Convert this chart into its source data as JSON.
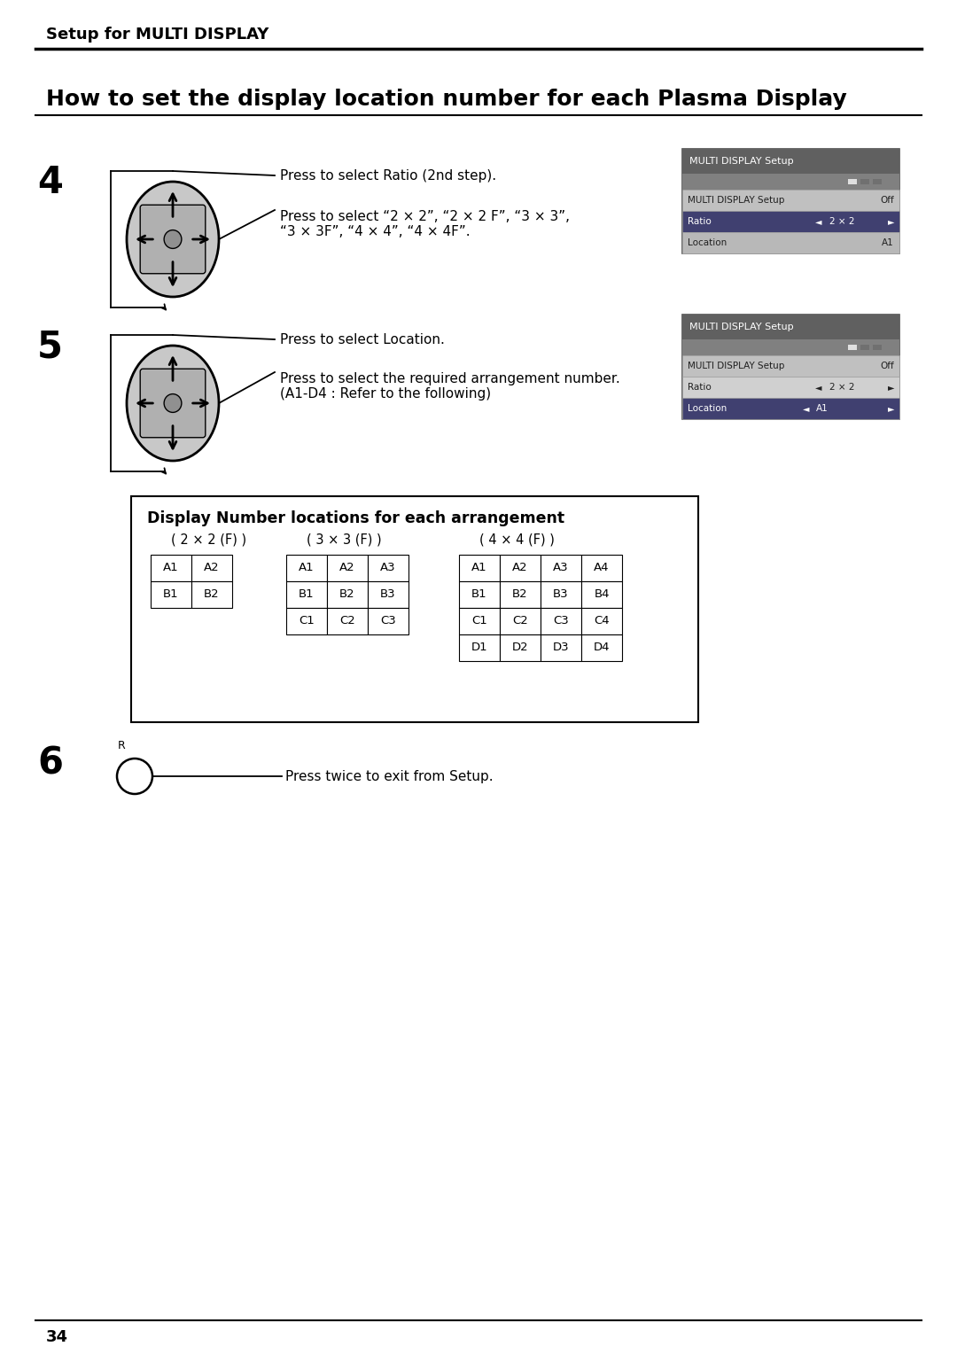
{
  "page_bg": "#ffffff",
  "header_text": "Setup for MULTI DISPLAY",
  "title_text": "How to set the display location number for each Plasma Display",
  "step4_number": "4",
  "step4_label1": "Press to select Ratio (2nd step).",
  "step4_label2": "Press to select “2 × 2”, “2 × 2 F”, “3 × 3”,\n“3 × 3F”, “4 × 4”, “4 × 4F”.",
  "step5_number": "5",
  "step5_label1": "Press to select Location.",
  "step5_label2": "Press to select the required arrangement number.\n(A1-D4 : Refer to the following)",
  "step6_number": "6",
  "step6_label": "Press twice to exit from Setup.",
  "step6_r": "R",
  "menu_title": "MULTI DISPLAY Setup",
  "menu_row1_label": "MULTI DISPLAY Setup",
  "menu_row1_value": "Off",
  "menu_row2_label": "Ratio",
  "menu_row2_value": "2 × 2",
  "menu_row3_label": "Location",
  "menu_row3_value": "A1",
  "table_title": "Display Number locations for each arrangement",
  "table_2x2_header": "( 2 × 2 (F) )",
  "table_3x3_header": "( 3 × 3 (F) )",
  "table_4x4_header": "( 4 × 4 (F) )",
  "table_2x2": [
    [
      "A1",
      "A2"
    ],
    [
      "B1",
      "B2"
    ]
  ],
  "table_3x3": [
    [
      "A1",
      "A2",
      "A3"
    ],
    [
      "B1",
      "B2",
      "B3"
    ],
    [
      "C1",
      "C2",
      "C3"
    ]
  ],
  "table_4x4": [
    [
      "A1",
      "A2",
      "A3",
      "A4"
    ],
    [
      "B1",
      "B2",
      "B3",
      "B4"
    ],
    [
      "C1",
      "C2",
      "C3",
      "C4"
    ],
    [
      "D1",
      "D2",
      "D3",
      "D4"
    ]
  ],
  "footer_page": "34"
}
